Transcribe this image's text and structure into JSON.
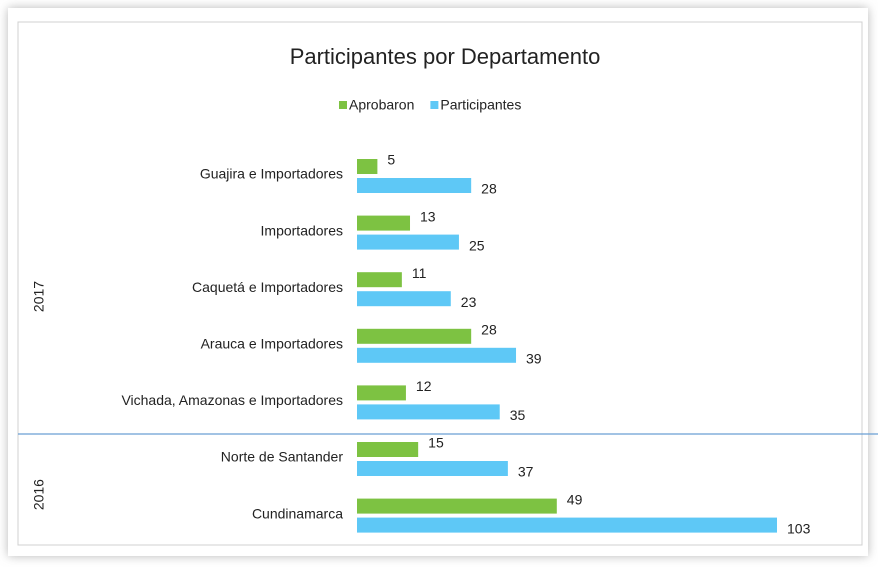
{
  "chart_data": {
    "type": "hbar",
    "title": "Participantes por Departamento",
    "categories": [
      "Guajira e  Importadores",
      "Importadores",
      "Caquetá  e Importadores",
      "Arauca e  Importadores",
      "Vichada, Amazonas e Importadores",
      "Norte de Santander",
      "Cundinamarca"
    ],
    "groups": [
      {
        "label": "2017",
        "size": 5
      },
      {
        "label": "2016",
        "size": 2
      }
    ],
    "series": [
      {
        "name": "Aprobaron",
        "color": "#7dc242",
        "values": [
          5,
          13,
          11,
          28,
          12,
          15,
          49
        ]
      },
      {
        "name": "Participantes",
        "color": "#5ec8f6",
        "values": [
          28,
          25,
          23,
          39,
          35,
          37,
          103
        ]
      }
    ],
    "legend": "top"
  }
}
